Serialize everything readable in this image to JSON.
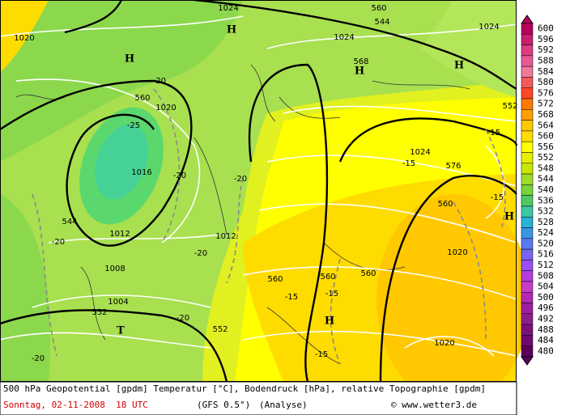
{
  "map": {
    "labels": [
      "1024",
      "560",
      "544",
      "1024",
      "1020",
      "1024",
      "568",
      "-20",
      "560",
      "1020",
      "-25",
      "552",
      "-15",
      "1024",
      "-15",
      "576",
      "1016",
      "-20",
      "-20",
      "-15",
      "560",
      "544",
      "1012",
      "-20",
      "1012",
      "1020",
      "-20",
      "1008",
      "560",
      "560",
      "560",
      "-15",
      "-15",
      "1004",
      "552",
      "-20",
      "552",
      "-15",
      "1020",
      "-20",
      "H",
      "H",
      "H",
      "H",
      "H",
      "H",
      "T"
    ]
  },
  "legend": {
    "steps": [
      {
        "label": "600",
        "color": "#b4005a"
      },
      {
        "label": "596",
        "color": "#c81e6e"
      },
      {
        "label": "592",
        "color": "#dc3c82"
      },
      {
        "label": "588",
        "color": "#e65a96"
      },
      {
        "label": "584",
        "color": "#f0789a"
      },
      {
        "label": "580",
        "color": "#f55a5a"
      },
      {
        "label": "576",
        "color": "#ff4628"
      },
      {
        "label": "572",
        "color": "#ff7800"
      },
      {
        "label": "568",
        "color": "#ffa000"
      },
      {
        "label": "564",
        "color": "#ffc800"
      },
      {
        "label": "560",
        "color": "#ffdc00"
      },
      {
        "label": "556",
        "color": "#ffff00"
      },
      {
        "label": "552",
        "color": "#e6f000"
      },
      {
        "label": "548",
        "color": "#c8e600"
      },
      {
        "label": "544",
        "color": "#a0dc28"
      },
      {
        "label": "540",
        "color": "#78d23c"
      },
      {
        "label": "536",
        "color": "#50c864"
      },
      {
        "label": "532",
        "color": "#3cc8a0"
      },
      {
        "label": "528",
        "color": "#28b4d2"
      },
      {
        "label": "524",
        "color": "#3c96e6"
      },
      {
        "label": "520",
        "color": "#5a78f0"
      },
      {
        "label": "516",
        "color": "#7864f0"
      },
      {
        "label": "512",
        "color": "#9650f0"
      },
      {
        "label": "508",
        "color": "#b43cdc"
      },
      {
        "label": "504",
        "color": "#c83cc8"
      },
      {
        "label": "500",
        "color": "#b428b4"
      },
      {
        "label": "496",
        "color": "#a01ea0"
      },
      {
        "label": "492",
        "color": "#8c1e8c"
      },
      {
        "label": "488",
        "color": "#781478"
      },
      {
        "label": "484",
        "color": "#6e0a6e"
      },
      {
        "label": "480",
        "color": "#5a005a"
      }
    ]
  },
  "footer": {
    "line1": "500 hPa Geopotential [gpdm] Temperatur [°C], Bodendruck [hPa], relative Topographie [gpdm]",
    "date": "Sonntag, 02-11-2008  18 UTC",
    "model": "(GFS 0.5°)",
    "analysis": "(Analyse)",
    "credit": "© www.wetter3.de"
  }
}
